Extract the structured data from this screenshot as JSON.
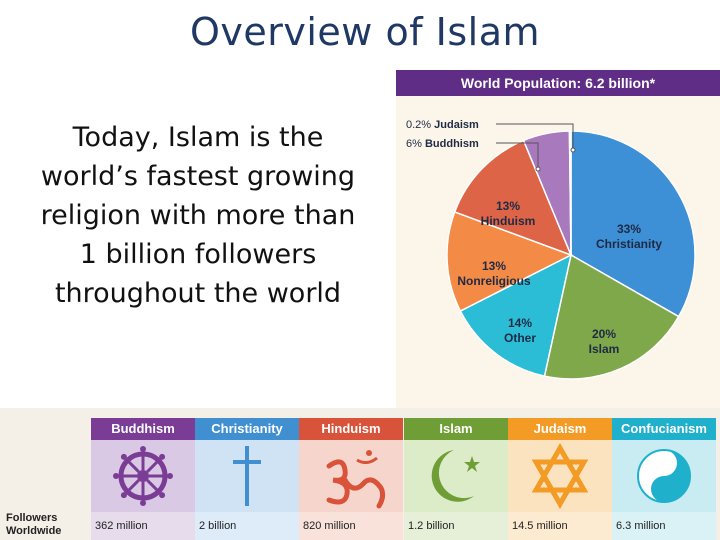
{
  "slide": {
    "title": "Overview of Islam",
    "body_lines": [
      "Today, Islam is the",
      "world’s fastest growing",
      "religion with more than",
      "1 billion followers",
      "throughout the world"
    ]
  },
  "colors": {
    "title": "#1f3864",
    "header_purple": "#5f2c86",
    "christianity": "#3d8fd6",
    "islam": "#7ea84a",
    "other": "#2bbdd6",
    "nonreligious": "#f38a45",
    "hinduism": "#dd6447",
    "buddhism": "#a879bd",
    "judaism": "#4b6c9b"
  },
  "chart_data": {
    "type": "pie",
    "title": "World Population: 6.2 billion*",
    "slices": [
      {
        "name": "Christianity",
        "value": 33,
        "label_pct": "33%",
        "color": "#3d8fd6"
      },
      {
        "name": "Islam",
        "value": 20,
        "label_pct": "20%",
        "color": "#7ea84a"
      },
      {
        "name": "Other",
        "value": 14,
        "label_pct": "14%",
        "color": "#2bbdd6"
      },
      {
        "name": "Nonreligious",
        "value": 13,
        "label_pct": "13%",
        "color": "#f38a45"
      },
      {
        "name": "Hinduism",
        "value": 13,
        "label_pct": "13%",
        "color": "#dd6447"
      },
      {
        "name": "Buddhism",
        "value": 6,
        "label_pct": "6%",
        "color": "#a879bd"
      },
      {
        "name": "Judaism",
        "value": 0.2,
        "label_pct": "0.2%",
        "color": "#4b6c9b"
      }
    ]
  },
  "religions_strip": {
    "row_label_line1": "Followers",
    "row_label_line2": "Worldwide",
    "columns": [
      {
        "name": "Buddhism",
        "followers": "362 million",
        "head_color": "#7a3c95",
        "body_color": "#d9c9e4",
        "foot_color": "#e6dcec",
        "icon": "dharma-wheel-icon"
      },
      {
        "name": "Christianity",
        "followers": "2 billion",
        "head_color": "#3f8fd1",
        "body_color": "#cfe3f5",
        "foot_color": "#deebf8",
        "icon": "cross-icon"
      },
      {
        "name": "Hinduism",
        "followers": "820 million",
        "head_color": "#d9523a",
        "body_color": "#f6d6cc",
        "foot_color": "#f8e2da",
        "icon": "om-icon"
      },
      {
        "name": "Islam",
        "followers": "1.2 billion",
        "head_color": "#6e9e35",
        "body_color": "#dcebc8",
        "foot_color": "#e6f0d8",
        "icon": "crescent-star-icon"
      },
      {
        "name": "Judaism",
        "followers": "14.5 million",
        "head_color": "#f39b24",
        "body_color": "#fbe3bf",
        "foot_color": "#fcebd0",
        "icon": "star-of-david-icon"
      },
      {
        "name": "Confucianism",
        "followers": "6.3 million",
        "head_color": "#1fb0cc",
        "body_color": "#c8ecf2",
        "foot_color": "#daf2f6",
        "icon": "yin-yang-icon"
      }
    ]
  }
}
